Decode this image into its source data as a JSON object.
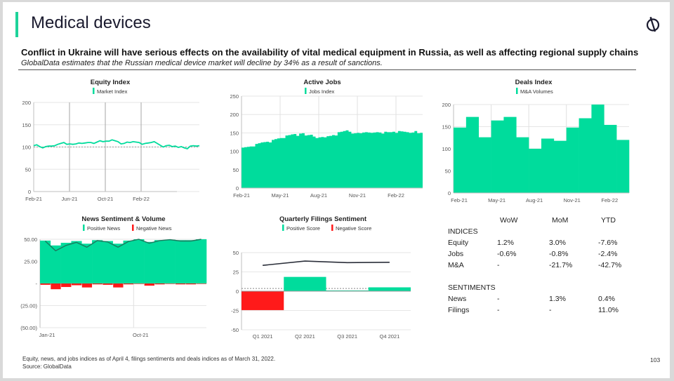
{
  "slide": {
    "title": "Medical devices",
    "headline": "Conflict in Ukraine will have serious effects on the availability of vital medical equipment in Russia, as well as affecting regional supply chains",
    "subheadline": "GlobalData estimates that the Russian medical device market will decline by 34% as a result of sanctions.",
    "footnote": "Equity, news, and jobs indices as of April 4, filings sentiments and deals indices as of March 31, 2022.",
    "source": "Source: GlobalData",
    "page_number": "103",
    "logo_icon": "globaldata-logo-icon"
  },
  "colors": {
    "accent": "#1ed39a",
    "green": "#00dc9c",
    "red": "#ff1a1a",
    "line": "#2b2f3a"
  },
  "chart_data": [
    {
      "id": "equity",
      "type": "line",
      "title": "Equity Index",
      "legend": [
        "Market Index"
      ],
      "ylim": [
        0,
        200
      ],
      "yticks": [
        "0",
        "50",
        "100",
        "150",
        "200"
      ],
      "xticks": [
        "Feb-21",
        "Jun-21",
        "Oct-21",
        "Feb-22"
      ],
      "baseline": 100,
      "series": [
        {
          "name": "Market Index",
          "values": [
            103,
            105,
            101,
            98,
            101,
            102,
            102,
            103,
            106,
            108,
            110,
            106,
            107,
            106,
            107,
            109,
            108,
            109,
            110,
            110,
            108,
            111,
            114,
            112,
            113,
            113,
            116,
            114,
            112,
            107,
            108,
            111,
            110,
            112,
            111,
            110,
            106,
            108,
            109,
            110,
            112,
            108,
            104,
            100,
            103,
            104,
            101,
            102,
            99,
            101,
            98,
            96,
            102,
            103,
            102,
            103
          ]
        }
      ]
    },
    {
      "id": "jobs",
      "type": "area",
      "title": "Active Jobs",
      "legend": [
        "Jobs Index"
      ],
      "ylim": [
        0,
        250
      ],
      "yticks": [
        "0",
        "50",
        "100",
        "150",
        "200",
        "250"
      ],
      "xticks": [
        "Feb-21",
        "May-21",
        "Aug-21",
        "Nov-21",
        "Feb-22"
      ],
      "series": [
        {
          "name": "Jobs Index",
          "values": [
            110,
            111,
            112,
            113,
            113,
            120,
            122,
            124,
            125,
            126,
            124,
            131,
            133,
            135,
            136,
            136,
            143,
            144,
            146,
            147,
            142,
            148,
            149,
            143,
            144,
            145,
            140,
            136,
            138,
            139,
            138,
            141,
            142,
            144,
            143,
            152,
            153,
            155,
            157,
            153,
            148,
            149,
            150,
            149,
            151,
            152,
            151,
            150,
            151,
            152,
            151,
            148,
            153,
            152,
            152,
            153,
            150,
            155,
            154,
            153,
            152,
            150,
            151,
            155,
            149,
            150
          ]
        }
      ]
    },
    {
      "id": "deals",
      "type": "bar",
      "title": "Deals Index",
      "legend": [
        "M&A Volumes"
      ],
      "ylim": [
        0,
        200
      ],
      "yticks": [
        "0",
        "50",
        "100",
        "150",
        "200"
      ],
      "xticks": [
        "Feb-21",
        "May-21",
        "Aug-21",
        "Nov-21",
        "Feb-22"
      ],
      "categories": [
        "Feb-21",
        "Mar-21",
        "Apr-21",
        "May-21",
        "Jun-21",
        "Jul-21",
        "Aug-21",
        "Sep-21",
        "Oct-21",
        "Nov-21",
        "Dec-21",
        "Jan-22",
        "Feb-22",
        "Mar-22"
      ],
      "series": [
        {
          "name": "M&A Volumes",
          "values": [
            148,
            172,
            126,
            164,
            172,
            126,
            100,
            123,
            118,
            148,
            169,
            200,
            154,
            120
          ]
        }
      ]
    },
    {
      "id": "news",
      "type": "bar",
      "title": "News Sentiment & Volume",
      "legend": [
        "Positive News",
        "Negative News"
      ],
      "ylim": [
        -50,
        50
      ],
      "yticks": [
        "(50.00)",
        "(25.00)",
        "-",
        "25.00",
        "50.00"
      ],
      "xticks": [
        "Jan-21",
        "Oct-21"
      ],
      "categories": [
        "Jan-21",
        "Feb-21",
        "Mar-21",
        "Apr-21",
        "May-21",
        "Jun-21",
        "Jul-21",
        "Aug-21",
        "Sep-21",
        "Oct-21",
        "Nov-21",
        "Dec-21",
        "Jan-22",
        "Feb-22",
        "Mar-22",
        "Apr-22"
      ],
      "series": [
        {
          "name": "Positive News",
          "values": [
            48.5,
            43,
            46,
            48,
            45,
            49,
            48,
            45,
            48.5,
            50,
            47,
            49,
            49.5,
            49,
            49,
            50
          ]
        },
        {
          "name": "Negative News",
          "values": [
            -1.5,
            -6.5,
            -4,
            -2,
            -4.5,
            -1,
            -1.5,
            -4.5,
            -1,
            -0.5,
            -2.5,
            -1,
            -0.5,
            -1,
            -1,
            -0.5
          ]
        },
        {
          "name": "Net Sentiment",
          "values": [
            48,
            37,
            43,
            46.5,
            41,
            48.5,
            47,
            41,
            47.5,
            50,
            45.5,
            48.5,
            49.5,
            48,
            48,
            50
          ]
        }
      ]
    },
    {
      "id": "filings",
      "type": "bar",
      "title": "Quarterly Filings Sentiment",
      "legend": [
        "Positive Score",
        "Negative Score"
      ],
      "ylim": [
        -50,
        50
      ],
      "yticks": [
        "-50",
        "-25",
        "0",
        "25",
        "50"
      ],
      "categories": [
        "Q1 2021",
        "Q2 2021",
        "Q3 2021",
        "Q4 2021"
      ],
      "dotted_average": 3.5,
      "series": [
        {
          "name": "Score",
          "values": [
            -24.5,
            18.5,
            1,
            5
          ]
        },
        {
          "name": "Trend line",
          "values": [
            33.5,
            39,
            37,
            37.5
          ]
        }
      ]
    }
  ],
  "metrics": {
    "columns": [
      "WoW",
      "MoM",
      "YTD"
    ],
    "sections": [
      {
        "label": "INDICES",
        "rows": [
          {
            "name": "Equity",
            "values": [
              "1.2%",
              "3.0%",
              "-7.6%"
            ]
          },
          {
            "name": "Jobs",
            "values": [
              "-0.6%",
              "-0.8%",
              "-2.4%"
            ]
          },
          {
            "name": "M&A",
            "values": [
              "-",
              "-21.7%",
              "-42.7%"
            ]
          }
        ]
      },
      {
        "label": "SENTIMENTS",
        "rows": [
          {
            "name": "News",
            "values": [
              "-",
              "1.3%",
              "0.4%"
            ]
          },
          {
            "name": "Filings",
            "values": [
              "-",
              "-",
              "11.0%"
            ]
          }
        ]
      }
    ]
  }
}
